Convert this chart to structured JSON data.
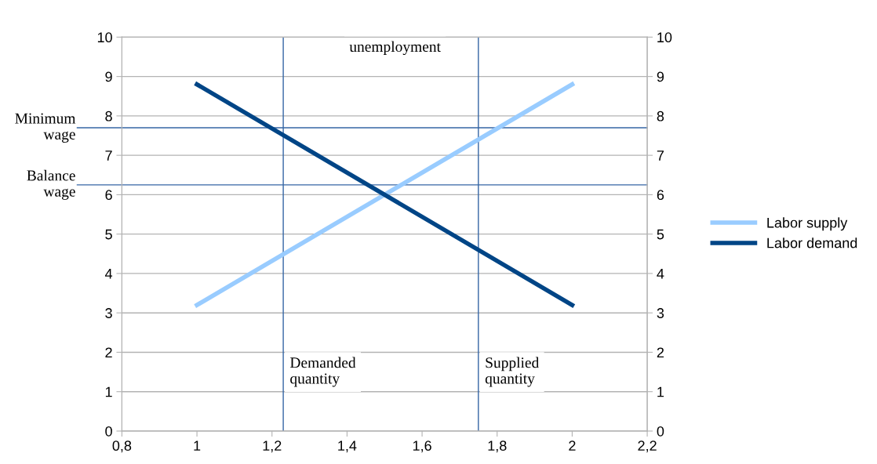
{
  "chart_data": {
    "type": "line",
    "x": [
      1,
      2
    ],
    "series": [
      {
        "name": "Labor supply",
        "color": "#99ccff",
        "values": [
          3.2,
          8.8
        ]
      },
      {
        "name": "Labor demand",
        "color": "#004586",
        "values": [
          8.8,
          3.2
        ]
      }
    ],
    "xlim": [
      0.8,
      2.2
    ],
    "xticks": [
      {
        "value": 0.8,
        "label": "0,8"
      },
      1,
      {
        "value": 1.2,
        "label": "1,2"
      },
      {
        "value": 1.4,
        "label": "1,4"
      },
      {
        "value": 1.6,
        "label": "1,6"
      },
      {
        "value": 1.8,
        "label": "1,8"
      },
      2,
      {
        "value": 2.2,
        "label": "2,2"
      }
    ],
    "ylim": [
      0,
      10
    ],
    "yticks": [
      0,
      1,
      2,
      3,
      4,
      5,
      6,
      7,
      8,
      9,
      10
    ],
    "y2lim": [
      0,
      10
    ],
    "y2ticks": [
      0,
      1,
      2,
      3,
      4,
      5,
      6,
      7,
      8,
      9,
      10
    ],
    "ref_lines": [
      {
        "axis": "y",
        "value": 7.7,
        "label": "Minimum\nwage",
        "color": "#3465a4"
      },
      {
        "axis": "y",
        "value": 6.25,
        "label": "Balance\nwage",
        "color": "#3465a4"
      },
      {
        "axis": "x",
        "value": 1.23,
        "label": "Demanded\nquantity",
        "color": "#3465a4"
      },
      {
        "axis": "x",
        "value": 1.75,
        "label": "Supplied\nquantity",
        "color": "#3465a4"
      }
    ],
    "annotations": [
      "unemployment"
    ],
    "grid": "y",
    "legend": "right",
    "marker": "none",
    "line_style": "solid"
  }
}
